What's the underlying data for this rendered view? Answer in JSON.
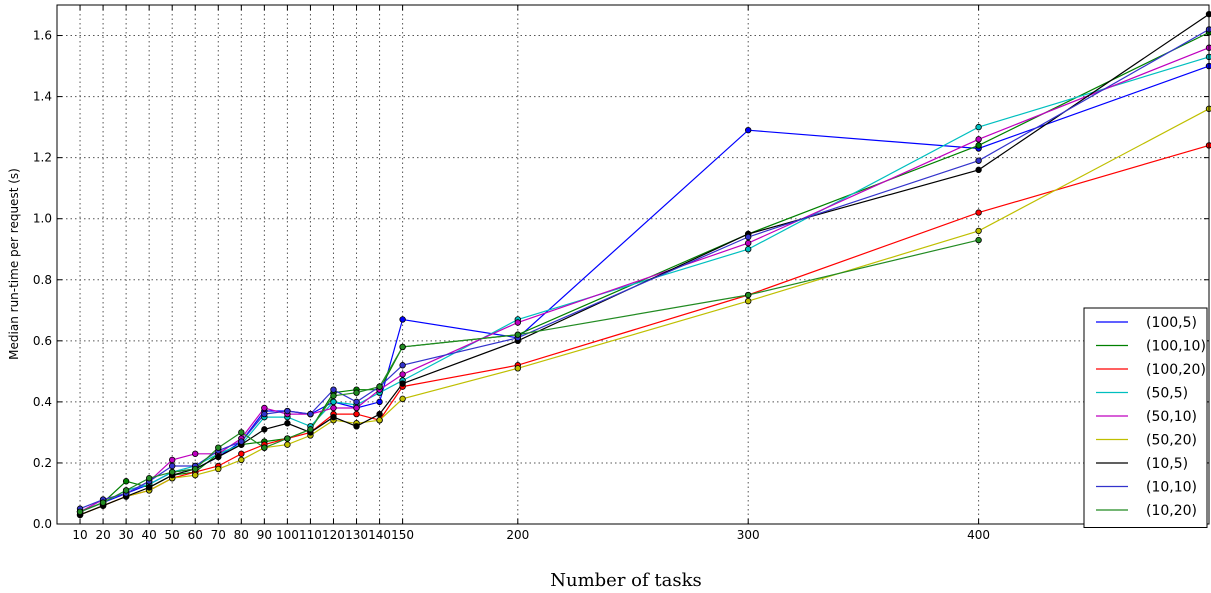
{
  "chart_data": {
    "type": "line",
    "xlabel": "Number of tasks",
    "ylabel": "Median run-time per request (s)",
    "xlim": [
      0,
      500
    ],
    "ylim": [
      0,
      1.7
    ],
    "x_ticks": [
      10,
      20,
      30,
      40,
      50,
      60,
      70,
      80,
      90,
      100,
      110,
      120,
      130,
      140,
      150,
      200,
      300,
      400
    ],
    "y_ticks": [
      0.0,
      0.2,
      0.4,
      0.6,
      0.8,
      1.0,
      1.2,
      1.4,
      1.6
    ],
    "y_tick_labels": [
      "0.0",
      "0.2",
      "0.4",
      "0.6",
      "0.8",
      "1.0",
      "1.2",
      "1.4",
      "1.6"
    ],
    "grid": true,
    "legend_position": "lower-right",
    "x": [
      10,
      20,
      30,
      40,
      50,
      60,
      70,
      80,
      90,
      100,
      110,
      120,
      130,
      140,
      150,
      200,
      300,
      400,
      500
    ],
    "series": [
      {
        "name": "(100,5)",
        "color": "#0000ff",
        "values": [
          0.04,
          0.07,
          0.1,
          0.13,
          0.17,
          0.18,
          0.22,
          0.27,
          0.37,
          0.37,
          0.36,
          0.4,
          0.38,
          0.4,
          0.67,
          0.61,
          1.29,
          1.23,
          1.5
        ]
      },
      {
        "name": "(100,10)",
        "color": "#008000",
        "values": [
          0.04,
          0.07,
          0.14,
          0.12,
          0.16,
          0.17,
          0.23,
          0.26,
          0.27,
          0.28,
          0.31,
          0.43,
          0.44,
          0.44,
          0.58,
          0.62,
          0.95,
          1.24,
          1.61
        ]
      },
      {
        "name": "(100,20)",
        "color": "#ff0000",
        "values": [
          0.03,
          0.06,
          0.09,
          0.11,
          0.15,
          0.17,
          0.19,
          0.23,
          0.26,
          0.28,
          0.3,
          0.36,
          0.36,
          0.34,
          0.45,
          0.52,
          0.75,
          1.02,
          1.24
        ]
      },
      {
        "name": "(50,5)",
        "color": "#00bfbf",
        "values": [
          0.04,
          0.07,
          0.11,
          0.13,
          0.17,
          0.19,
          0.23,
          0.26,
          0.35,
          0.35,
          0.32,
          0.4,
          0.39,
          0.43,
          0.47,
          0.67,
          0.9,
          1.3,
          1.53
        ]
      },
      {
        "name": "(50,10)",
        "color": "#bf00bf",
        "values": [
          0.04,
          0.08,
          0.1,
          0.14,
          0.21,
          0.23,
          0.23,
          0.28,
          0.38,
          0.36,
          0.36,
          0.38,
          0.38,
          0.44,
          0.49,
          0.66,
          0.92,
          1.26,
          1.56
        ]
      },
      {
        "name": "(50,20)",
        "color": "#bfbf00",
        "values": [
          0.03,
          0.06,
          0.09,
          0.11,
          0.15,
          0.16,
          0.18,
          0.21,
          0.25,
          0.26,
          0.29,
          0.34,
          0.33,
          0.34,
          0.41,
          0.51,
          0.73,
          0.96,
          1.36
        ]
      },
      {
        "name": "(10,5)",
        "color": "#000000",
        "values": [
          0.03,
          0.06,
          0.09,
          0.12,
          0.16,
          0.18,
          0.22,
          0.26,
          0.31,
          0.33,
          0.3,
          0.35,
          0.32,
          0.36,
          0.46,
          0.6,
          0.95,
          1.16,
          1.67
        ]
      },
      {
        "name": "(10,10)",
        "color": "#3333cc",
        "values": [
          0.05,
          0.08,
          0.1,
          0.14,
          0.19,
          0.19,
          0.24,
          0.27,
          0.36,
          0.37,
          0.36,
          0.44,
          0.4,
          0.45,
          0.52,
          0.61,
          0.94,
          1.19,
          1.62
        ]
      },
      {
        "name": "(10,20)",
        "color": "#228b22",
        "values": [
          0.04,
          0.07,
          0.11,
          0.15,
          0.17,
          0.18,
          0.25,
          0.3,
          0.25,
          0.28,
          0.31,
          0.42,
          0.43,
          0.45,
          0.58,
          0.62,
          0.75,
          0.93,
          null
        ]
      }
    ]
  }
}
